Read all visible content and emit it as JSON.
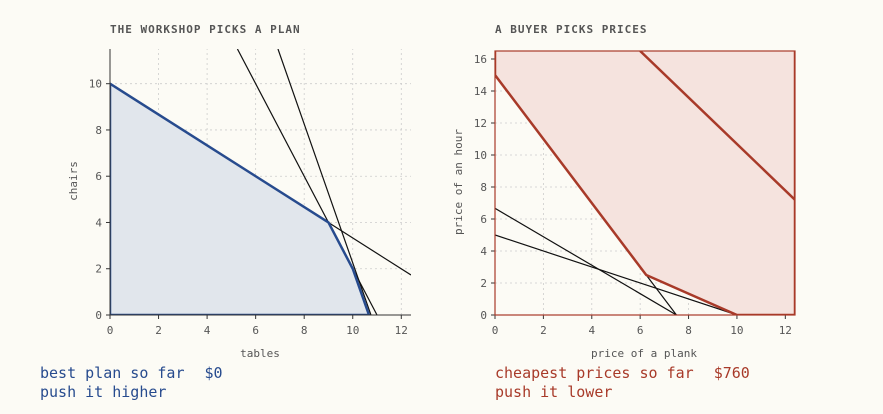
{
  "left": {
    "title": "THE WORKSHOP PICKS A PLAN",
    "status_label": "best plan so far",
    "status_value": "$0",
    "hint": "push it higher"
  },
  "right": {
    "title": "A BUYER PICKS PRICES",
    "status_label": "cheapest prices so far",
    "status_value": "$760",
    "hint": "push it lower"
  },
  "colors": {
    "plan_line": "#274b8e",
    "plan_fill": "#e1e6ec",
    "price_line": "#a83a29",
    "price_fill": "#f5e3de",
    "constraint_line": "#111111",
    "grid": "#cccccc",
    "background": "#fcfbf5"
  },
  "chart_data": [
    {
      "type": "area",
      "xlabel": "tables",
      "ylabel": "chairs",
      "xlim": [
        0,
        12.4
      ],
      "ylim": [
        0,
        11.5
      ],
      "xticks": [
        0,
        2,
        4,
        6,
        8,
        10,
        12
      ],
      "yticks": [
        0,
        2,
        4,
        6,
        8,
        10
      ],
      "grid": true,
      "feasible_region": [
        [
          0,
          0
        ],
        [
          0,
          10
        ],
        [
          9,
          4
        ],
        [
          10,
          2
        ],
        [
          10.67,
          0
        ]
      ],
      "constraint_lines": [
        {
          "points": [
            [
              0,
              10
            ],
            [
              12.4,
              1.73
            ]
          ]
        },
        {
          "points": [
            [
              5.25,
              11.5
            ],
            [
              11,
              0
            ]
          ]
        },
        {
          "points": [
            [
              6.92,
              11.5
            ],
            [
              10.75,
              0
            ]
          ]
        }
      ]
    },
    {
      "type": "area",
      "xlabel": "price of a plank",
      "ylabel": "price of an hour",
      "xlim": [
        0,
        12.4
      ],
      "ylim": [
        0,
        16.5
      ],
      "xticks": [
        0,
        2,
        4,
        6,
        8,
        10,
        12
      ],
      "yticks": [
        0,
        2,
        4,
        6,
        8,
        10,
        12,
        14,
        16
      ],
      "grid": true,
      "feasible_region": [
        [
          0,
          16.5
        ],
        [
          0,
          15
        ],
        [
          6.25,
          2.5
        ],
        [
          10,
          0
        ],
        [
          12.4,
          0
        ],
        [
          12.4,
          16.5
        ]
      ],
      "constraint_lines": [
        {
          "points": [
            [
              0,
              6.67
            ],
            [
              7.5,
              0
            ]
          ]
        },
        {
          "points": [
            [
              0,
              15
            ],
            [
              7.5,
              0
            ]
          ]
        },
        {
          "points": [
            [
              0,
              5
            ],
            [
              10,
              0
            ]
          ]
        }
      ],
      "objective_line": {
        "points": [
          [
            6,
            16.5
          ],
          [
            12.4,
            7.2
          ]
        ]
      }
    }
  ]
}
